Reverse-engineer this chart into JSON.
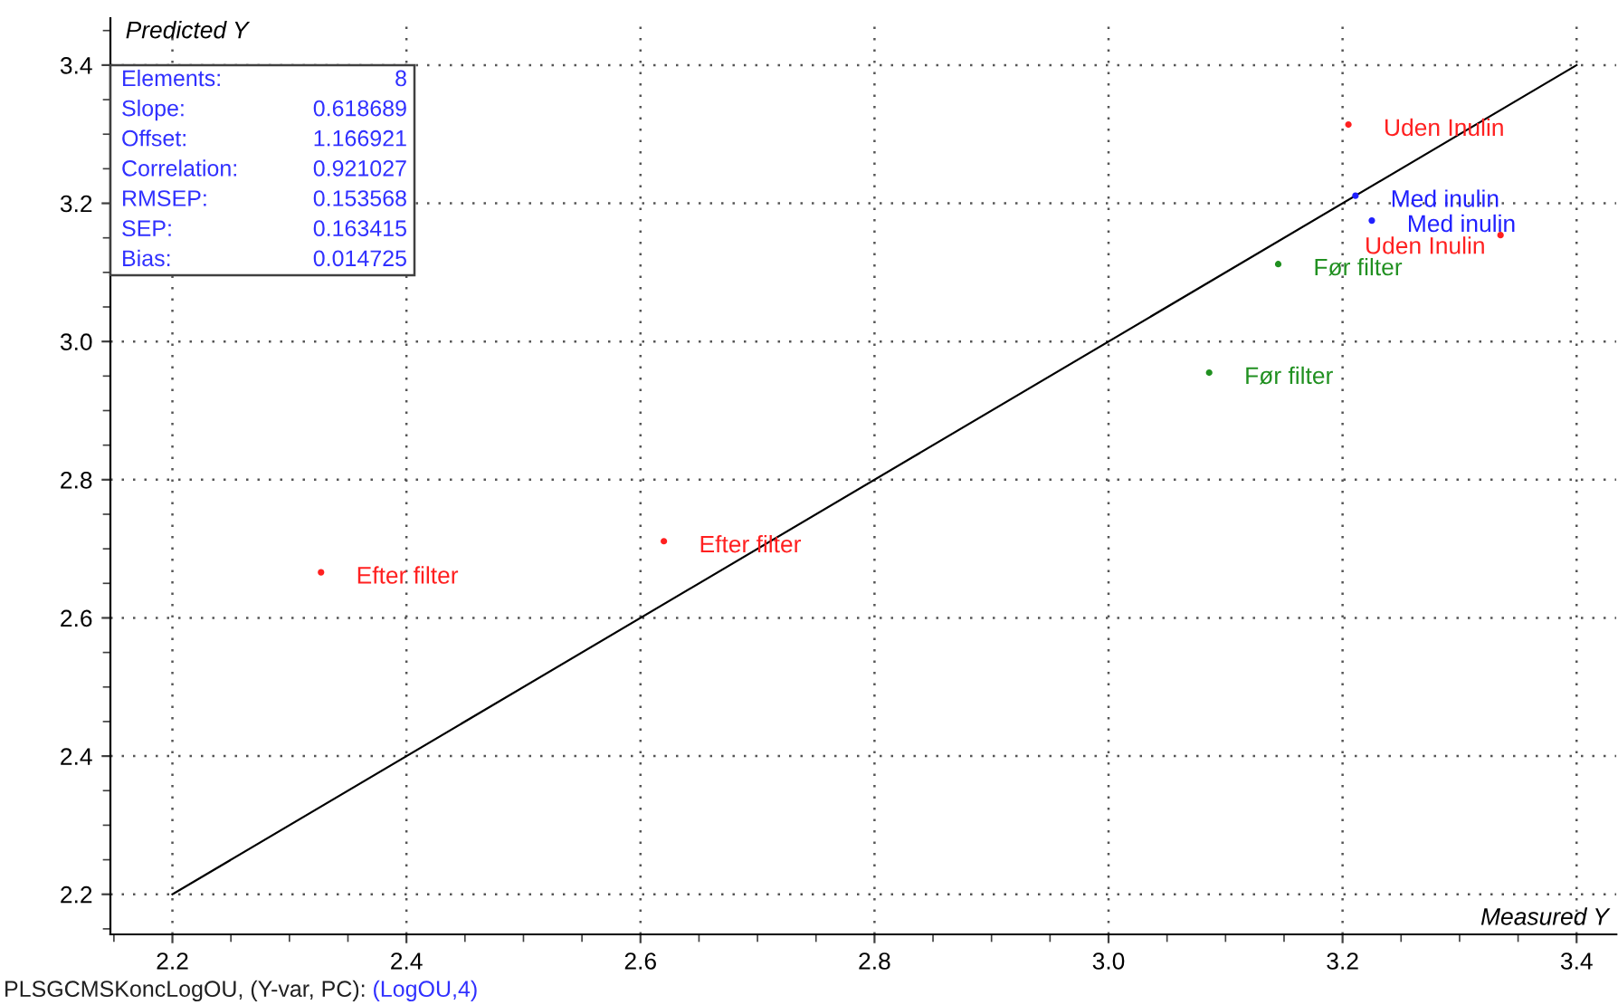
{
  "chart_data": {
    "type": "scatter",
    "xlabel": "Measured Y",
    "ylabel": "Predicted Y",
    "xlim": [
      2.147,
      3.434
    ],
    "ylim": [
      2.142,
      3.468
    ],
    "xticks": [
      2.2,
      2.4,
      2.6,
      2.8,
      {
        "value": 3,
        "label": "3.0"
      },
      3.2,
      3.4
    ],
    "yticks": [
      2.2,
      2.4,
      2.6,
      2.8,
      {
        "value": 3,
        "label": "3.0"
      },
      3.2,
      3.4
    ],
    "grid": true,
    "marker": "circle",
    "legend": false,
    "series": [
      {
        "name": "Efter filter",
        "color": "#ff2020",
        "x": [
          2.327,
          2.62
        ],
        "values": [
          2.666,
          2.711
        ]
      },
      {
        "name": "Før filter",
        "color": "#209020",
        "x": [
          3.086,
          3.145
        ],
        "values": [
          2.955,
          3.112
        ]
      },
      {
        "name": "Uden Inulin",
        "color": "#ff2020",
        "x": [
          3.205,
          3.335
        ],
        "values": [
          3.314,
          3.154
        ]
      },
      {
        "name": "Med inulin",
        "color": "#2020ff",
        "x": [
          3.211,
          3.225
        ],
        "values": [
          3.211,
          3.175
        ]
      },
      {
        "type": "line",
        "color": "#000000",
        "x": [
          2.2,
          3.4
        ],
        "values": [
          2.2,
          3.4
        ],
        "line_style": "solid",
        "marker": "none"
      }
    ],
    "annotations": [
      "Elements:",
      "8",
      "Slope:",
      "0.618689",
      "Offset:",
      "1.166921",
      "Correlation:",
      "0.921027",
      "RMSEP:",
      "0.153568",
      "SEP:",
      "0.163415",
      "Bias:",
      "0.014725",
      "PLSGCMSKoncLogOU, (Y-var, PC):",
      "(LogOU,4)"
    ]
  }
}
